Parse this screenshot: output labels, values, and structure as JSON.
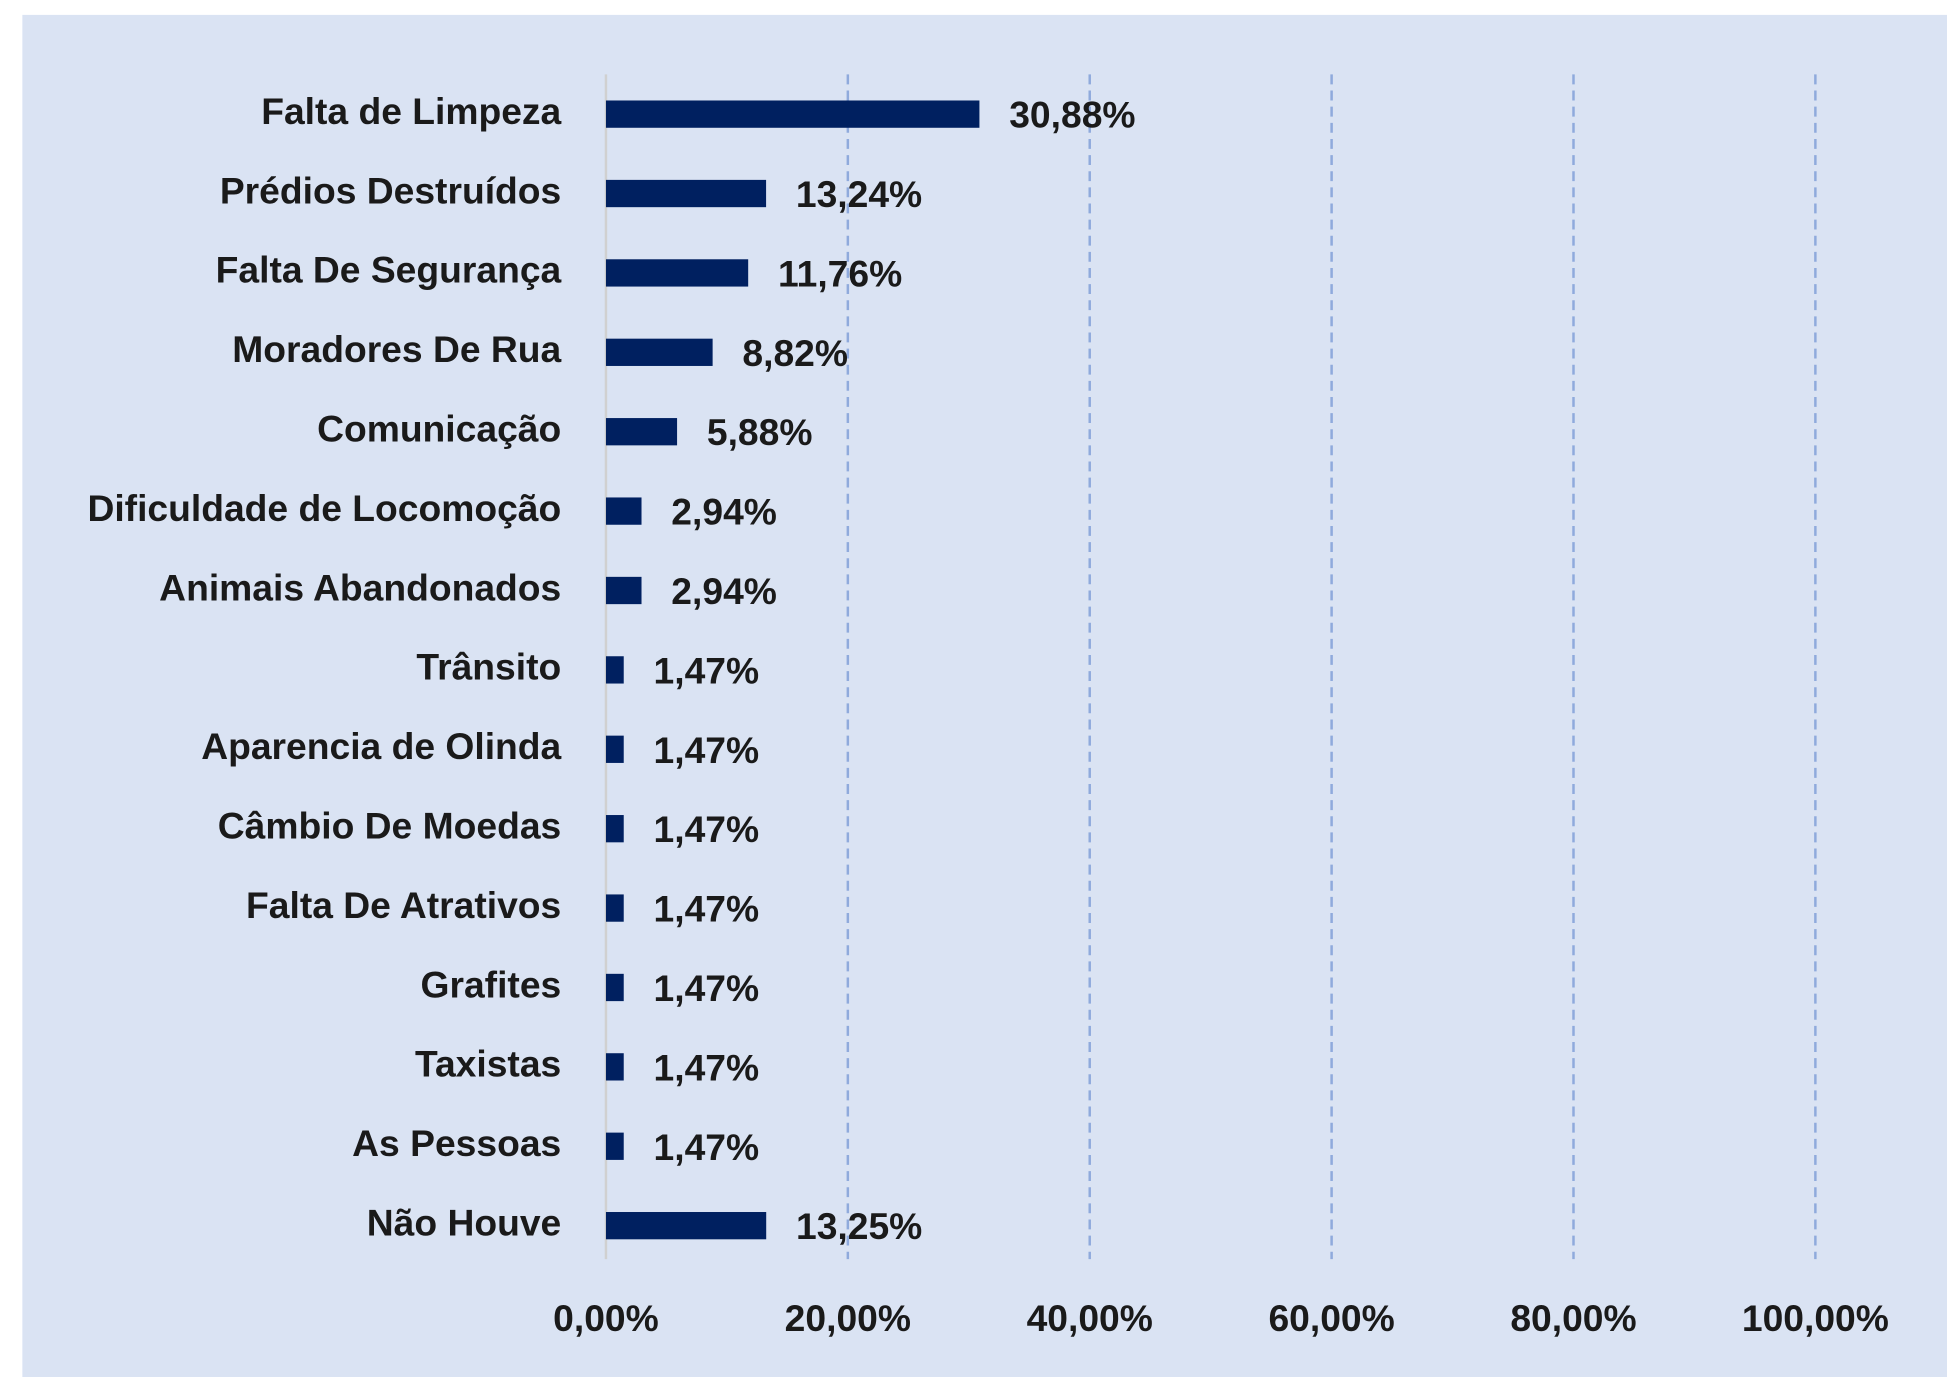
{
  "chart_data": {
    "type": "barh",
    "categories": [
      "Falta de Limpeza",
      "Prédios Destruídos",
      "Falta De Segurança",
      "Moradores De Rua",
      "Comunicação",
      "Dificuldade de Locomoção",
      "Animais Abandonados",
      "Trânsito",
      "Aparencia de Olinda",
      "Câmbio De Moedas",
      "Falta De Atrativos",
      "Grafites",
      "Taxistas",
      "As Pessoas",
      "Não Houve"
    ],
    "values": [
      30.88,
      13.24,
      11.76,
      8.82,
      5.88,
      2.94,
      2.94,
      1.47,
      1.47,
      1.47,
      1.47,
      1.47,
      1.47,
      1.47,
      13.25
    ],
    "value_labels": [
      "30,88%",
      "13,24%",
      "11,76%",
      "8,82%",
      "5,88%",
      "2,94%",
      "2,94%",
      "1,47%",
      "1,47%",
      "1,47%",
      "1,47%",
      "1,47%",
      "1,47%",
      "1,47%",
      "13,25%"
    ],
    "color": "#002060",
    "xlim": [
      0,
      100
    ],
    "xticks": [
      {
        "value": 0,
        "label": "0,00%"
      },
      {
        "value": 20,
        "label": "20,00%"
      },
      {
        "value": 40,
        "label": "40,00%"
      },
      {
        "value": 60,
        "label": "60,00%"
      },
      {
        "value": 80,
        "label": "80,00%"
      },
      {
        "value": 100,
        "label": "100,00%"
      }
    ],
    "grid": true
  }
}
